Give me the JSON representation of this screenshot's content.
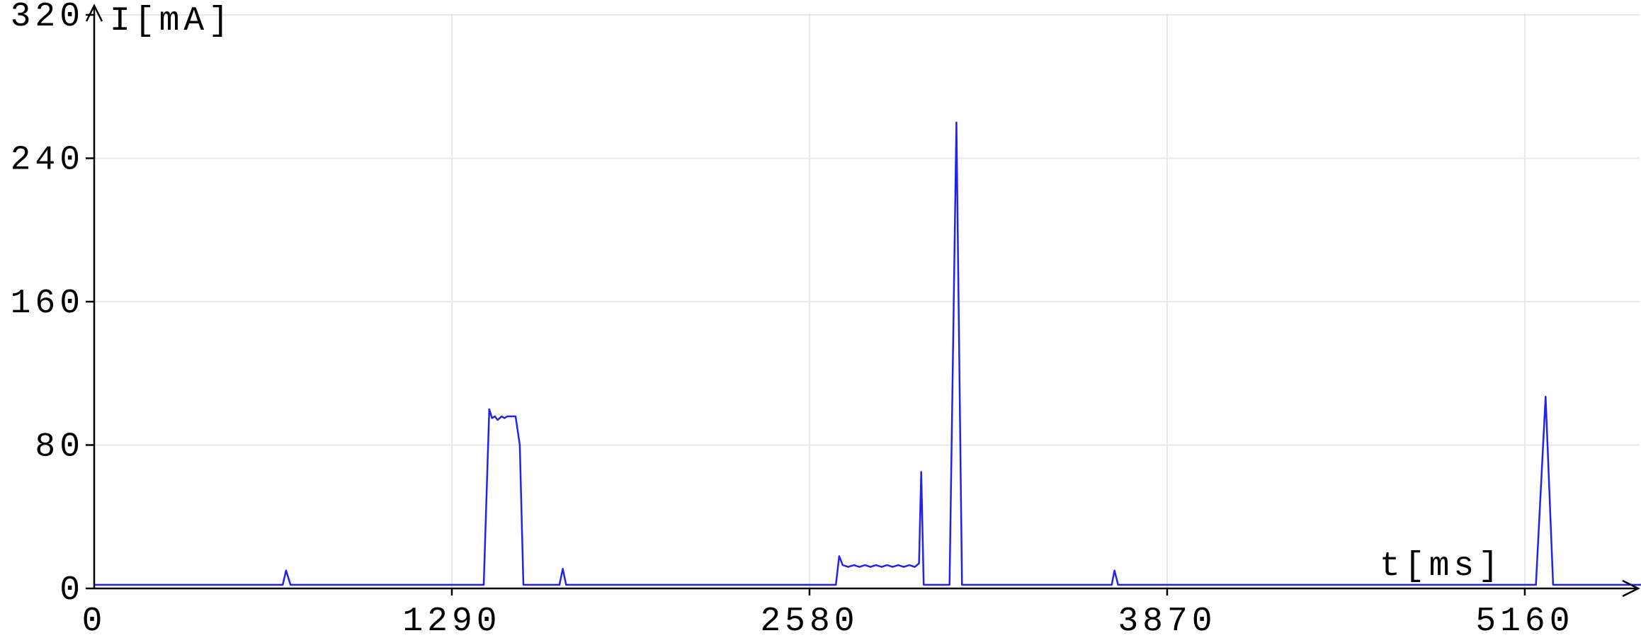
{
  "chart_data": {
    "type": "line",
    "xlabel": "t[ms]",
    "ylabel": "I[mA]",
    "xlim": [
      0,
      5620
    ],
    "ylim": [
      0,
      320
    ],
    "x_ticks": [
      0,
      1290,
      2580,
      3870,
      5160
    ],
    "y_ticks": [
      0,
      80,
      160,
      240,
      320
    ],
    "grid": true,
    "colors": {
      "line": "#2222ee",
      "grid": "#e8e8e8",
      "axis": "#000000"
    },
    "series": [
      {
        "values": [
          [
            0,
            2
          ],
          [
            680,
            2
          ],
          [
            692,
            10
          ],
          [
            708,
            2
          ],
          [
            1405,
            2
          ],
          [
            1425,
            100
          ],
          [
            1435,
            95
          ],
          [
            1445,
            96
          ],
          [
            1455,
            94
          ],
          [
            1470,
            96
          ],
          [
            1480,
            95
          ],
          [
            1490,
            96
          ],
          [
            1520,
            96
          ],
          [
            1535,
            80
          ],
          [
            1548,
            2
          ],
          [
            1678,
            2
          ],
          [
            1690,
            11
          ],
          [
            1702,
            2
          ],
          [
            2675,
            2
          ],
          [
            2687,
            18
          ],
          [
            2700,
            13
          ],
          [
            2720,
            12
          ],
          [
            2740,
            13
          ],
          [
            2760,
            12
          ],
          [
            2780,
            13
          ],
          [
            2800,
            12
          ],
          [
            2820,
            13
          ],
          [
            2840,
            12
          ],
          [
            2860,
            13
          ],
          [
            2880,
            12
          ],
          [
            2900,
            13
          ],
          [
            2920,
            12
          ],
          [
            2940,
            13
          ],
          [
            2960,
            12
          ],
          [
            2975,
            14
          ],
          [
            2983,
            65
          ],
          [
            2992,
            2
          ],
          [
            3085,
            2
          ],
          [
            3110,
            260
          ],
          [
            3130,
            2
          ],
          [
            3670,
            2
          ],
          [
            3680,
            10
          ],
          [
            3693,
            2
          ],
          [
            5200,
            2
          ],
          [
            5235,
            107
          ],
          [
            5262,
            2
          ],
          [
            5620,
            2
          ]
        ]
      }
    ]
  }
}
